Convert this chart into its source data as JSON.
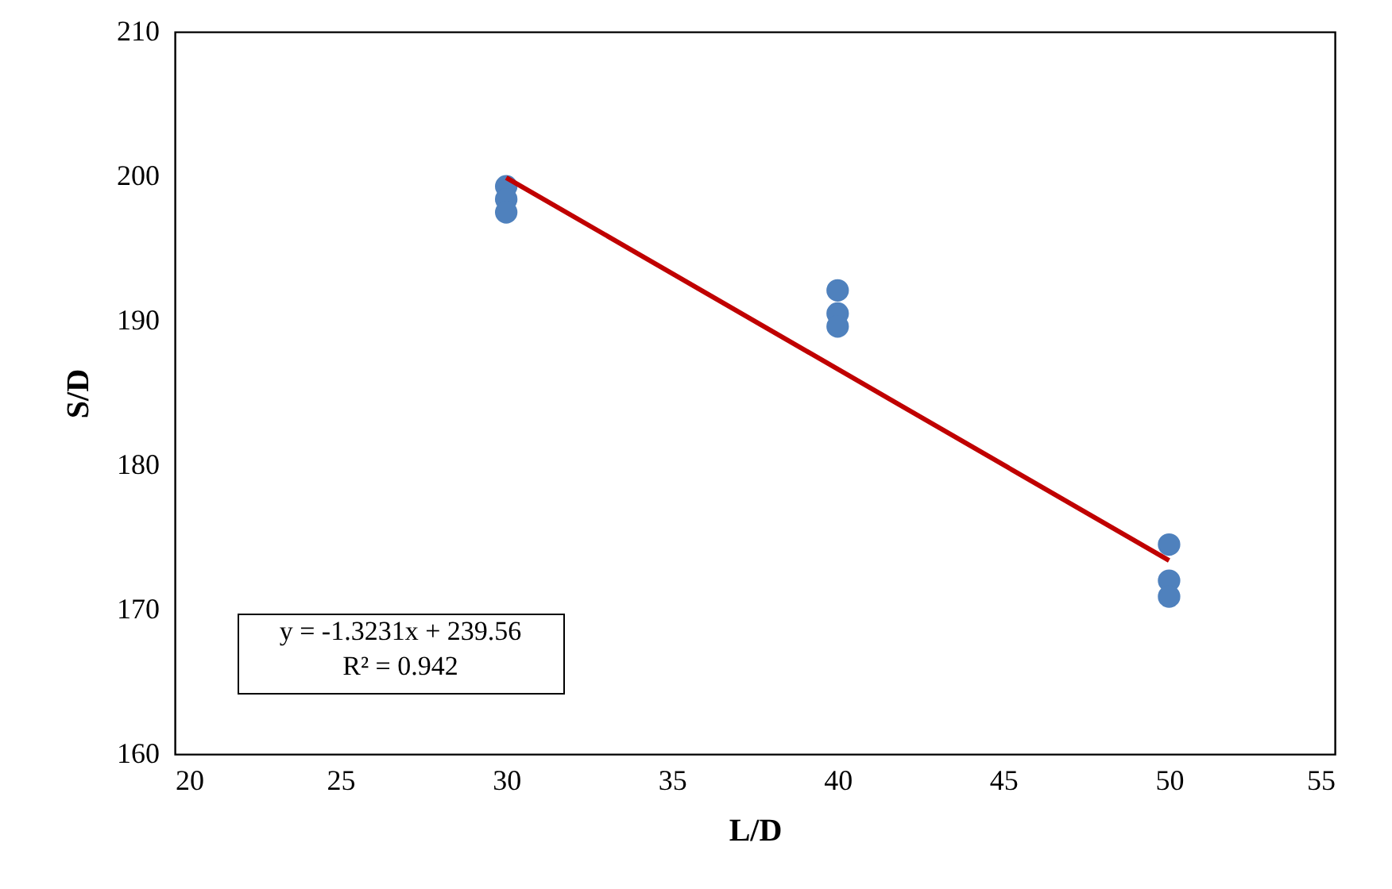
{
  "chart_data": {
    "type": "scatter",
    "xlabel": "L/D",
    "ylabel": "S/D",
    "series": [
      {
        "type": "scatter",
        "color": "#4f81bd",
        "marker": "circle",
        "x": [
          30,
          30,
          30,
          40,
          40,
          40,
          50,
          50,
          50
        ],
        "values": [
          199.3,
          198.4,
          197.5,
          192.1,
          190.5,
          189.6,
          174.5,
          172,
          170.9
        ]
      },
      {
        "type": "line",
        "color": "#c00000",
        "marker": "none",
        "x": [
          30,
          50
        ],
        "values": [
          199.9,
          173.4
        ]
      }
    ],
    "xlim": [
      20,
      55
    ],
    "xticks": [
      20,
      25,
      30,
      35,
      40,
      45,
      50,
      55
    ],
    "ylim": [
      160,
      210
    ],
    "yticks": [
      160,
      170,
      180,
      190,
      200,
      210
    ],
    "grid": false,
    "annotations": [
      "y = -1.3231x + 239.56",
      "R² = 0.942"
    ]
  }
}
